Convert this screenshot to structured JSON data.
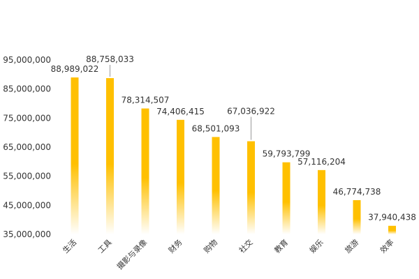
{
  "chart_data": {
    "type": "bar",
    "categories": [
      "生活",
      "工具",
      "摄影与录像",
      "财务",
      "购物",
      "社交",
      "教育",
      "娱乐",
      "旅游",
      "效率"
    ],
    "values": [
      88989022,
      88758033,
      78314507,
      74406415,
      68501093,
      67036922,
      59793799,
      57116204,
      46774738,
      37940438
    ],
    "value_labels": [
      "88,989,022",
      "88,758,033",
      "78,314,507",
      "74,406,415",
      "68,501,093",
      "67,036,922",
      "59,793,799",
      "57,116,204",
      "46,774,738",
      "37,940,438"
    ],
    "y_ticks": [
      35000000,
      45000000,
      55000000,
      65000000,
      75000000,
      85000000,
      95000000
    ],
    "y_tick_labels": [
      "35,000,000",
      "45,000,000",
      "55,000,000",
      "65,000,000",
      "75,000,000",
      "85,000,000",
      "95,000,000"
    ],
    "ylim": [
      35000000,
      95000000
    ],
    "title": "",
    "xlabel": "",
    "ylabel": "",
    "grid": false,
    "legend": "none",
    "colors": {
      "bar_top": "#FFC000",
      "bar_bottom": "#FFFFFF",
      "text": "#333333",
      "leader": "#999999"
    }
  }
}
